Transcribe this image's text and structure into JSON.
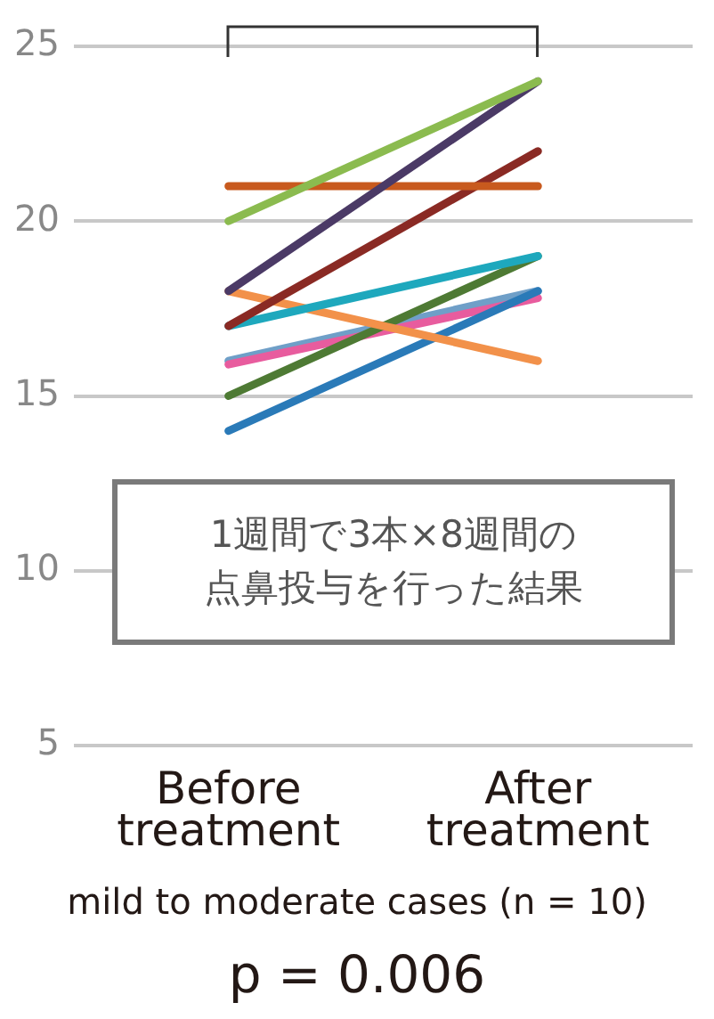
{
  "chart_data": {
    "type": "line",
    "xlabel": "mild to moderate cases (n = 10)",
    "categories": [
      "Before treatment",
      "After treatment"
    ],
    "series": [
      {
        "color": "#8bbb4f",
        "values": [
          20,
          24
        ]
      },
      {
        "color": "#4b3a66",
        "values": [
          18,
          24
        ]
      },
      {
        "color": "#c85a1e",
        "values": [
          21,
          21
        ]
      },
      {
        "color": "#8a2a24",
        "values": [
          17,
          22
        ]
      },
      {
        "color": "#1ea8bd",
        "values": [
          17,
          19
        ]
      },
      {
        "color": "#f2914a",
        "values": [
          18,
          16
        ]
      },
      {
        "color": "#4e7a34",
        "values": [
          15,
          19
        ]
      },
      {
        "color": "#2a7ab8",
        "values": [
          14,
          18
        ]
      },
      {
        "color": "#e85c9e",
        "values": [
          15.9,
          17.8
        ]
      },
      {
        "color": "#6f9fc8",
        "values": [
          16,
          18
        ]
      }
    ],
    "ylim": [
      5,
      25
    ],
    "yticks": [
      5,
      10,
      15,
      20,
      25
    ],
    "grid": "y",
    "marker": "none",
    "line_style": "solid",
    "annotations": [
      "1週間で3本×8週間の点鼻投与を行った結果",
      "p = 0.006"
    ]
  }
}
